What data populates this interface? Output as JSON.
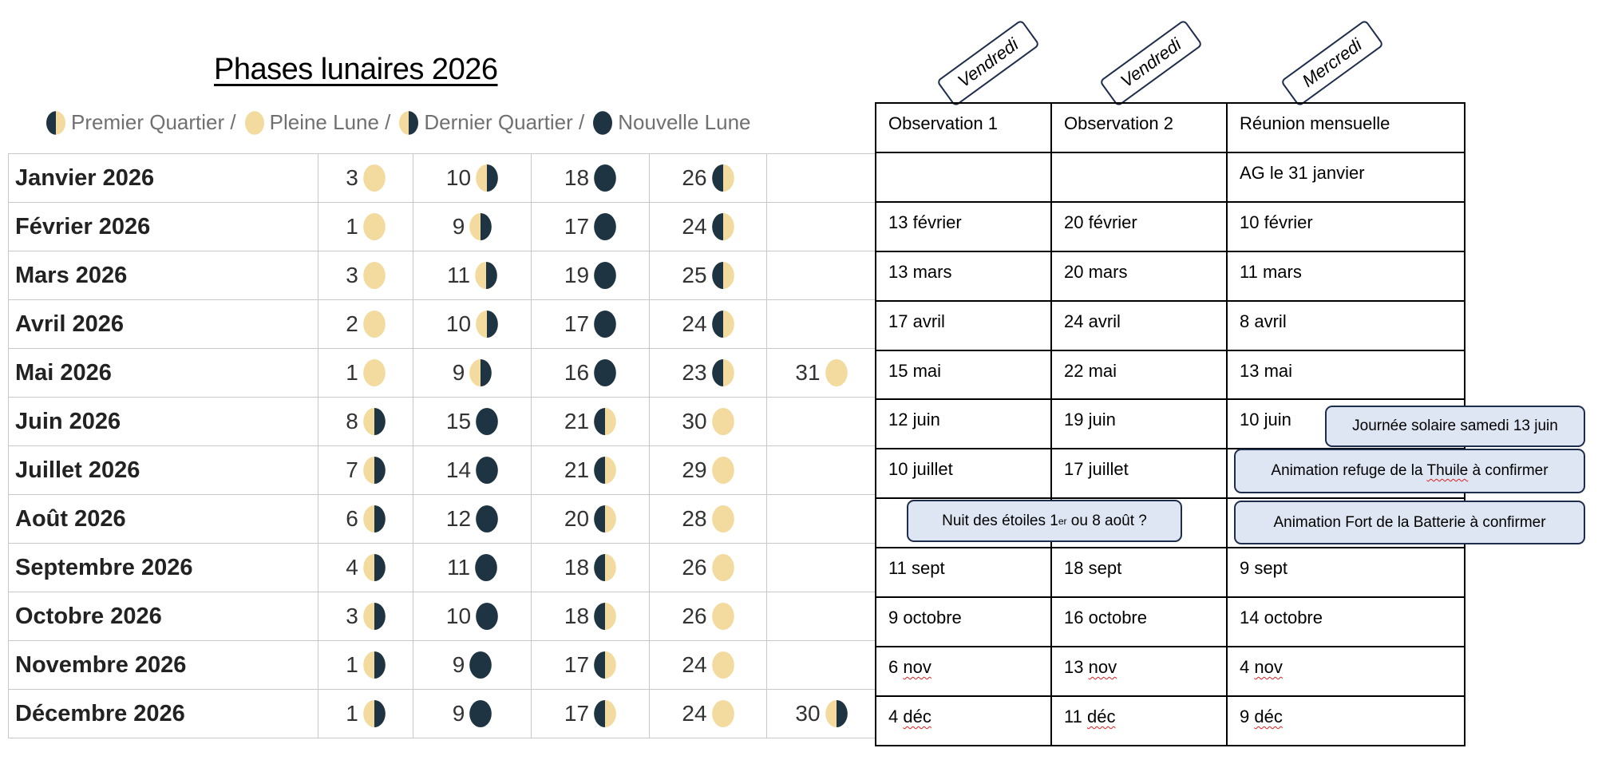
{
  "title": "Phases lunaires 2026",
  "legend": [
    {
      "phase": "premier",
      "label": "Premier Quartier /"
    },
    {
      "phase": "pleine",
      "label": "Pleine Lune /"
    },
    {
      "phase": "dernier",
      "label": "Dernier Quartier /"
    },
    {
      "phase": "nouvelle",
      "label": "Nouvelle Lune"
    }
  ],
  "colors": {
    "moon_light": "#f3dba0",
    "moon_dark": "#1e3443",
    "note_fill": "#dde6f2",
    "note_border": "#1f2d4d"
  },
  "months": [
    {
      "name": "Janvier 2026",
      "phases": [
        {
          "day": "3",
          "phase": "pleine"
        },
        {
          "day": "10",
          "phase": "dernier"
        },
        {
          "day": "18",
          "phase": "nouvelle"
        },
        {
          "day": "26",
          "phase": "premier"
        }
      ]
    },
    {
      "name": "Février 2026",
      "phases": [
        {
          "day": "1",
          "phase": "pleine"
        },
        {
          "day": "9",
          "phase": "dernier"
        },
        {
          "day": "17",
          "phase": "nouvelle"
        },
        {
          "day": "24",
          "phase": "premier"
        }
      ]
    },
    {
      "name": "Mars 2026",
      "phases": [
        {
          "day": "3",
          "phase": "pleine"
        },
        {
          "day": "11",
          "phase": "dernier"
        },
        {
          "day": "19",
          "phase": "nouvelle"
        },
        {
          "day": "25",
          "phase": "premier"
        }
      ]
    },
    {
      "name": "Avril 2026",
      "phases": [
        {
          "day": "2",
          "phase": "pleine"
        },
        {
          "day": "10",
          "phase": "dernier"
        },
        {
          "day": "17",
          "phase": "nouvelle"
        },
        {
          "day": "24",
          "phase": "premier"
        }
      ]
    },
    {
      "name": "Mai 2026",
      "phases": [
        {
          "day": "1",
          "phase": "pleine"
        },
        {
          "day": "9",
          "phase": "dernier"
        },
        {
          "day": "16",
          "phase": "nouvelle"
        },
        {
          "day": "23",
          "phase": "premier"
        },
        {
          "day": "31",
          "phase": "pleine"
        }
      ]
    },
    {
      "name": "Juin 2026",
      "phases": [
        {
          "day": "8",
          "phase": "dernier"
        },
        {
          "day": "15",
          "phase": "nouvelle"
        },
        {
          "day": "21",
          "phase": "premier"
        },
        {
          "day": "30",
          "phase": "pleine"
        }
      ]
    },
    {
      "name": "Juillet 2026",
      "phases": [
        {
          "day": "7",
          "phase": "dernier"
        },
        {
          "day": "14",
          "phase": "nouvelle"
        },
        {
          "day": "21",
          "phase": "premier"
        },
        {
          "day": "29",
          "phase": "pleine"
        }
      ]
    },
    {
      "name": "Août 2026",
      "phases": [
        {
          "day": "6",
          "phase": "dernier"
        },
        {
          "day": "12",
          "phase": "nouvelle"
        },
        {
          "day": "20",
          "phase": "premier"
        },
        {
          "day": "28",
          "phase": "pleine"
        }
      ]
    },
    {
      "name": "Septembre 2026",
      "phases": [
        {
          "day": "4",
          "phase": "dernier"
        },
        {
          "day": "11",
          "phase": "nouvelle"
        },
        {
          "day": "18",
          "phase": "premier"
        },
        {
          "day": "26",
          "phase": "pleine"
        }
      ]
    },
    {
      "name": "Octobre 2026",
      "phases": [
        {
          "day": "3",
          "phase": "dernier"
        },
        {
          "day": "10",
          "phase": "nouvelle"
        },
        {
          "day": "18",
          "phase": "premier"
        },
        {
          "day": "26",
          "phase": "pleine"
        }
      ]
    },
    {
      "name": "Novembre 2026",
      "phases": [
        {
          "day": "1",
          "phase": "dernier"
        },
        {
          "day": "9",
          "phase": "nouvelle"
        },
        {
          "day": "17",
          "phase": "premier"
        },
        {
          "day": "24",
          "phase": "pleine"
        }
      ]
    },
    {
      "name": "Décembre 2026",
      "phases": [
        {
          "day": "1",
          "phase": "dernier"
        },
        {
          "day": "9",
          "phase": "nouvelle"
        },
        {
          "day": "17",
          "phase": "premier"
        },
        {
          "day": "24",
          "phase": "pleine"
        },
        {
          "day": "30",
          "phase": "dernier"
        }
      ]
    }
  ],
  "schedule": {
    "day_tabs": [
      "Vendredi",
      "Vendredi",
      "Mercredi"
    ],
    "headers": [
      "Observation 1",
      "Observation 2",
      "Réunion mensuelle"
    ],
    "rows": [
      [
        "",
        "",
        "AG le 31 janvier"
      ],
      [
        "13 février",
        "20 février",
        "10 février"
      ],
      [
        "13 mars",
        "20 mars",
        "11 mars"
      ],
      [
        "17 avril",
        "24 avril",
        "8 avril"
      ],
      [
        "15 mai",
        "22 mai",
        "13 mai"
      ],
      [
        "12 juin",
        "19 juin",
        "10 juin"
      ],
      [
        "10 juillet",
        "17 juillet",
        ""
      ],
      [
        "",
        "",
        ""
      ],
      [
        "11 sept",
        "18 sept",
        "9 sept"
      ],
      [
        "9 octobre",
        "16 octobre",
        "14 octobre"
      ],
      [
        "6 nov",
        "13 nov",
        "4 nov"
      ],
      [
        "4 déc",
        "11 déc",
        "9 déc"
      ]
    ],
    "spellcheck_flagged_words": [
      "nov",
      "déc",
      "Thuile"
    ]
  },
  "notes": {
    "journee_solaire": "Journée solaire samedi 13 juin",
    "refuge_thuile": "Animation refuge de la Thuile à confirmer",
    "nuit_etoiles": {
      "before": "Nuit des étoiles 1",
      "sup": "er",
      "after": " ou 8 août ?"
    },
    "fort_batterie": "Animation Fort de la Batterie à confirmer"
  }
}
